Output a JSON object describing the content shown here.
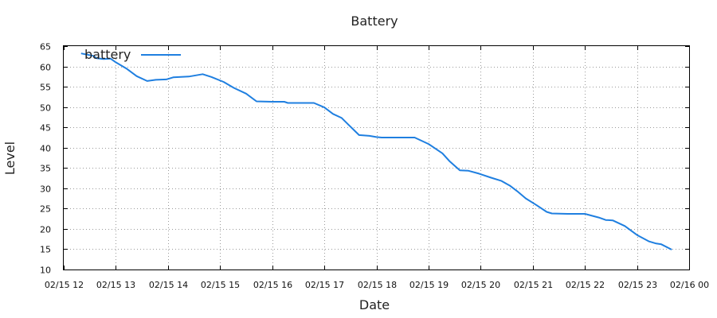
{
  "chart_data": {
    "type": "line",
    "title": "Battery",
    "xlabel": "Date",
    "ylabel": "Level",
    "ylim": [
      10,
      65
    ],
    "xlim": [
      "02/15 12:00",
      "02/16 00:00"
    ],
    "grid": true,
    "legend_position": "top-left",
    "x_tick_labels": [
      "02/15 12",
      "02/15 13",
      "02/15 14",
      "02/15 15",
      "02/15 16",
      "02/15 17",
      "02/15 18",
      "02/15 19",
      "02/15 20",
      "02/15 21",
      "02/15 22",
      "02/15 23",
      "02/16 00"
    ],
    "y_tick_labels": [
      "10",
      "15",
      "20",
      "25",
      "30",
      "35",
      "40",
      "45",
      "50",
      "55",
      "60",
      "65"
    ],
    "series": [
      {
        "name": "battery",
        "color": "#1f7fe0",
        "x": [
          "02/15 12:20",
          "02/15 12:34",
          "02/15 12:38",
          "02/15 12:46",
          "02/15 12:54",
          "02/15 13:00",
          "02/15 13:12",
          "02/15 13:24",
          "02/15 13:36",
          "02/15 13:46",
          "02/15 13:58",
          "02/15 14:06",
          "02/15 14:24",
          "02/15 14:40",
          "02/15 14:50",
          "02/15 15:04",
          "02/15 15:16",
          "02/15 15:30",
          "02/15 15:42",
          "02/15 16:00",
          "02/15 16:14",
          "02/15 16:18",
          "02/15 16:30",
          "02/15 16:48",
          "02/15 17:00",
          "02/15 17:10",
          "02/15 17:20",
          "02/15 17:28",
          "02/15 17:40",
          "02/15 17:52",
          "02/15 18:00",
          "02/15 18:06",
          "02/15 18:30",
          "02/15 18:44",
          "02/15 19:00",
          "02/15 19:16",
          "02/15 19:24",
          "02/15 19:36",
          "02/15 19:46",
          "02/15 19:58",
          "02/15 20:12",
          "02/15 20:24",
          "02/15 20:34",
          "02/15 20:42",
          "02/15 20:52",
          "02/15 21:04",
          "02/15 21:16",
          "02/15 21:22",
          "02/15 21:40",
          "02/15 21:54",
          "02/15 22:00",
          "02/15 22:16",
          "02/15 22:24",
          "02/15 22:32",
          "02/15 22:46",
          "02/15 23:00",
          "02/15 23:14",
          "02/15 23:22",
          "02/15 23:28",
          "02/15 23:40"
        ],
        "y": [
          63.2,
          62.6,
          62.0,
          61.8,
          61.9,
          61.0,
          59.5,
          57.6,
          56.4,
          56.7,
          56.8,
          57.3,
          57.5,
          58.1,
          57.4,
          56.2,
          54.7,
          53.3,
          51.4,
          51.3,
          51.3,
          51.0,
          51.0,
          51.0,
          49.9,
          48.3,
          47.3,
          45.6,
          43.1,
          42.9,
          42.6,
          42.5,
          42.5,
          42.5,
          40.9,
          38.6,
          36.7,
          34.4,
          34.3,
          33.6,
          32.6,
          31.8,
          30.6,
          29.3,
          27.5,
          25.9,
          24.2,
          23.8,
          23.7,
          23.7,
          23.7,
          22.8,
          22.2,
          22.1,
          20.7,
          18.5,
          16.9,
          16.4,
          16.2,
          14.9
        ]
      }
    ]
  }
}
